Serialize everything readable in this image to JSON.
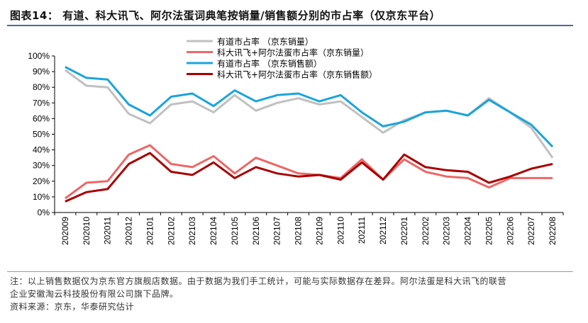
{
  "title": "图表14：  有道、科大讯飞、阿尔法蛋词典笔按销量/销售额分别的市占率（仅京东平台）",
  "notes": [
    "注：以上销售数据仅为京东官方旗舰店数据。由于数据为我们手工统计，可能与实际数据存在差异。阿尔法蛋是科大讯飞的联营",
    "企业安徽淘云科技股份有限公司旗下品牌。",
    "资料来源：京东，华泰研究估计"
  ],
  "chart_data": {
    "type": "line",
    "title": "",
    "xlabel": "",
    "ylabel": "",
    "ylim": [
      0,
      100
    ],
    "yticks": [
      "0%",
      "10%",
      "20%",
      "30%",
      "40%",
      "50%",
      "60%",
      "70%",
      "80%",
      "90%",
      "100%"
    ],
    "grid": false,
    "legend_position": "top-center",
    "categories": [
      "202009",
      "202010",
      "202011",
      "202012",
      "202101",
      "202102",
      "202103",
      "202104",
      "202105",
      "202106",
      "202107",
      "202108",
      "202109",
      "202110",
      "202111",
      "202112",
      "202201",
      "202202",
      "202203",
      "202204",
      "202205",
      "202206",
      "202207",
      "202208"
    ],
    "series": [
      {
        "name": "有道市占率 （京东销量）",
        "color": "#c0c0c0",
        "values": [
          91,
          81,
          80,
          63,
          57,
          69,
          71,
          64,
          75,
          65,
          70,
          73,
          69,
          71,
          61,
          51,
          59,
          64,
          65,
          62,
          73,
          64,
          54,
          35
        ]
      },
      {
        "name": "科大讯飞+阿尔法蛋市占率（京东销量）",
        "color": "#ee6666",
        "values": [
          9,
          19,
          20,
          37,
          43,
          31,
          29,
          36,
          25,
          35,
          30,
          25,
          24,
          22,
          34,
          21,
          34,
          26,
          23,
          22,
          16,
          22,
          22,
          22
        ]
      },
      {
        "name": "有道市占率 （京东销售额）",
        "color": "#1aa4dc",
        "values": [
          93,
          86,
          85,
          69,
          62,
          74,
          76,
          68,
          78,
          71,
          75,
          76,
          71,
          75,
          64,
          55,
          58,
          64,
          65,
          62,
          72,
          64,
          56,
          42
        ]
      },
      {
        "name": "科大讯飞+阿尔法蛋市占率（京东销售额）",
        "color": "#a80000",
        "values": [
          7,
          13,
          15,
          31,
          38,
          26,
          24,
          32,
          22,
          29,
          25,
          23,
          24,
          21,
          32,
          21,
          37,
          29,
          27,
          26,
          19,
          23,
          28,
          31
        ]
      }
    ]
  }
}
